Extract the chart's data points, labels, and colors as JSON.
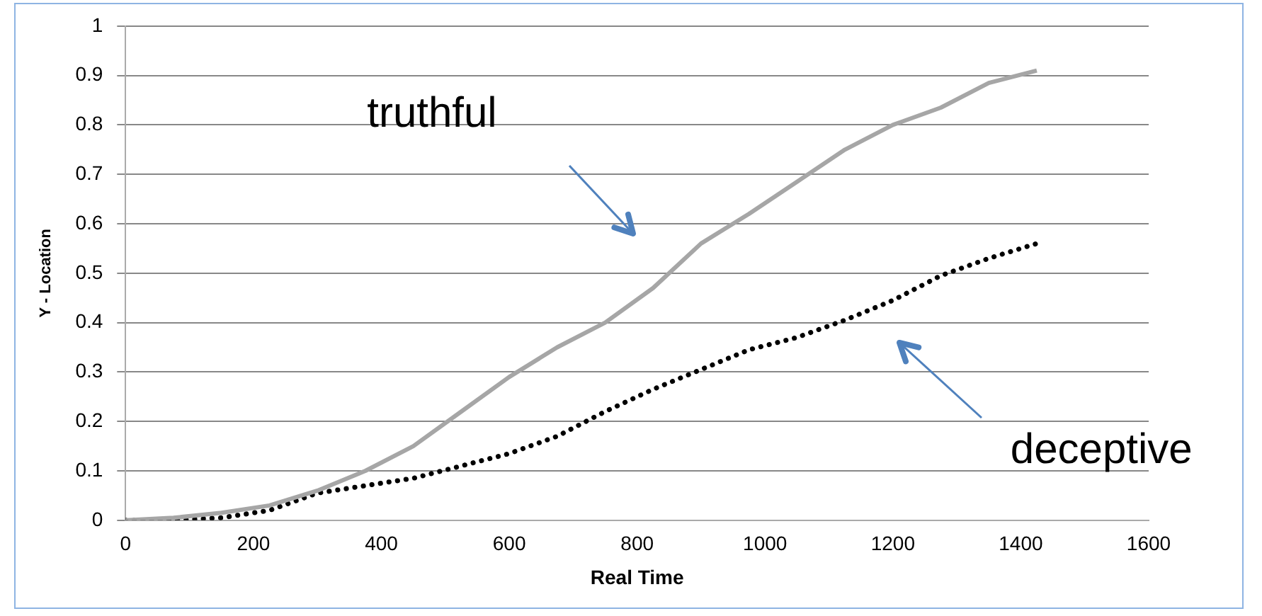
{
  "chart_data": {
    "type": "line",
    "xlabel": "Real Time",
    "ylabel": "Y - Location",
    "xlim": [
      0,
      1600
    ],
    "xticks": [
      0,
      200,
      400,
      600,
      800,
      1000,
      1200,
      1400,
      1600
    ],
    "ylim": [
      0,
      1
    ],
    "yticks": [
      0,
      0.1,
      0.2,
      0.3,
      0.4,
      0.5,
      0.6,
      0.7,
      0.8,
      0.9,
      1
    ],
    "grid": "y",
    "legend": false,
    "marker": "none",
    "annotations": [
      "truthful",
      "deceptive"
    ],
    "x": [
      0,
      75,
      150,
      225,
      300,
      375,
      450,
      525,
      600,
      675,
      750,
      825,
      900,
      975,
      1050,
      1125,
      1200,
      1275,
      1350,
      1425
    ],
    "series": [
      {
        "color": "#a6a6a6",
        "line_style": "solid",
        "values": [
          0,
          0.005,
          0.015,
          0.03,
          0.06,
          0.1,
          0.15,
          0.22,
          0.29,
          0.35,
          0.4,
          0.47,
          0.56,
          0.62,
          0.685,
          0.75,
          0.8,
          0.835,
          0.885,
          0.91
        ]
      },
      {
        "color": "#000000",
        "line_style": "dotted",
        "values": [
          0,
          0,
          0.005,
          0.02,
          0.055,
          0.07,
          0.085,
          0.11,
          0.135,
          0.17,
          0.22,
          0.265,
          0.305,
          0.345,
          0.37,
          0.405,
          0.445,
          0.495,
          0.53,
          0.56
        ]
      }
    ]
  }
}
